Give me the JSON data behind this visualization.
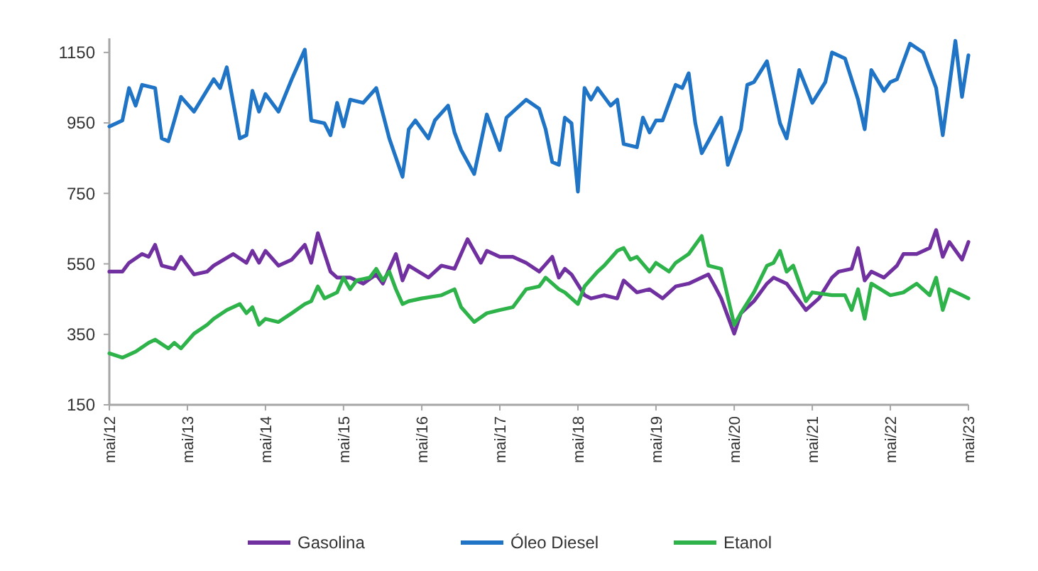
{
  "chart_data": {
    "type": "line",
    "ylim": [
      150,
      1190
    ],
    "yticks": [
      150,
      350,
      550,
      750,
      950,
      1150
    ],
    "xlim": [
      "2012-05",
      "2023-05"
    ],
    "xticks": [
      {
        "value": "2012-05",
        "label": "mai/12"
      },
      {
        "value": "2013-05",
        "label": "mai/13"
      },
      {
        "value": "2014-05",
        "label": "mai/14"
      },
      {
        "value": "2015-05",
        "label": "mai/15"
      },
      {
        "value": "2016-05",
        "label": "mai/16"
      },
      {
        "value": "2017-05",
        "label": "mai/17"
      },
      {
        "value": "2018-05",
        "label": "mai/18"
      },
      {
        "value": "2019-05",
        "label": "mai/19"
      },
      {
        "value": "2020-05",
        "label": "mai/20"
      },
      {
        "value": "2021-05",
        "label": "mai/21"
      },
      {
        "value": "2022-05",
        "label": "mai/22"
      },
      {
        "value": "2023-05",
        "label": "mai/23"
      }
    ],
    "grid": false,
    "legend": "bottom",
    "line_style": "solid",
    "series": [
      {
        "name": "Gasolina",
        "color": "#7030a0",
        "x": [
          "2012-05",
          "2012-07",
          "2012-08",
          "2012-10",
          "2012-11",
          "2012-12",
          "2013-01",
          "2013-03",
          "2013-04",
          "2013-06",
          "2013-08",
          "2013-09",
          "2013-12",
          "2014-02",
          "2014-03",
          "2014-04",
          "2014-05",
          "2014-07",
          "2014-09",
          "2014-11",
          "2014-12",
          "2015-01",
          "2015-03",
          "2015-04",
          "2015-06",
          "2015-08",
          "2015-10",
          "2015-11",
          "2016-01",
          "2016-02",
          "2016-03",
          "2016-06",
          "2016-08",
          "2016-10",
          "2016-12",
          "2017-02",
          "2017-03",
          "2017-05",
          "2017-07",
          "2017-09",
          "2017-11",
          "2018-01",
          "2018-02",
          "2018-03",
          "2018-04",
          "2018-06",
          "2018-07",
          "2018-09",
          "2018-11",
          "2018-12",
          "2019-02",
          "2019-04",
          "2019-06",
          "2019-08",
          "2019-10",
          "2020-01",
          "2020-02",
          "2020-03",
          "2020-05",
          "2020-06",
          "2020-08",
          "2020-10",
          "2020-11",
          "2021-01",
          "2021-04",
          "2021-06",
          "2021-08",
          "2021-09",
          "2021-11",
          "2021-12",
          "2022-01",
          "2022-02",
          "2022-04",
          "2022-06",
          "2022-07",
          "2022-09",
          "2022-11",
          "2022-12",
          "2023-01",
          "2023-02",
          "2023-04",
          "2023-05"
        ],
        "values": [
          528,
          528,
          553,
          578,
          570,
          604,
          545,
          536,
          570,
          520,
          528,
          545,
          578,
          553,
          587,
          553,
          587,
          545,
          562,
          604,
          553,
          637,
          528,
          511,
          511,
          494,
          520,
          494,
          578,
          503,
          545,
          511,
          545,
          536,
          620,
          553,
          587,
          570,
          570,
          553,
          528,
          570,
          511,
          536,
          520,
          461,
          452,
          461,
          452,
          503,
          469,
          478,
          452,
          486,
          494,
          520,
          486,
          452,
          352,
          410,
          444,
          494,
          511,
          494,
          419,
          452,
          511,
          528,
          536,
          595,
          503,
          528,
          511,
          545,
          578,
          578,
          595,
          646,
          570,
          612,
          562,
          612
        ]
      },
      {
        "name": "Óleo Diesel",
        "color": "#1f74c6",
        "x": [
          "2012-05",
          "2012-07",
          "2012-08",
          "2012-09",
          "2012-10",
          "2012-12",
          "2013-01",
          "2013-02",
          "2013-03",
          "2013-04",
          "2013-06",
          "2013-09",
          "2013-10",
          "2013-11",
          "2014-01",
          "2014-02",
          "2014-03",
          "2014-04",
          "2014-05",
          "2014-07",
          "2014-09",
          "2014-11",
          "2014-12",
          "2015-02",
          "2015-03",
          "2015-04",
          "2015-05",
          "2015-06",
          "2015-08",
          "2015-10",
          "2015-12",
          "2016-02",
          "2016-03",
          "2016-04",
          "2016-06",
          "2016-07",
          "2016-09",
          "2016-10",
          "2016-11",
          "2017-01",
          "2017-03",
          "2017-05",
          "2017-06",
          "2017-09",
          "2017-11",
          "2017-12",
          "2018-01",
          "2018-02",
          "2018-03",
          "2018-04",
          "2018-05",
          "2018-06",
          "2018-07",
          "2018-08",
          "2018-10",
          "2018-11",
          "2018-12",
          "2019-02",
          "2019-03",
          "2019-04",
          "2019-05",
          "2019-06",
          "2019-08",
          "2019-09",
          "2019-10",
          "2019-11",
          "2019-12",
          "2020-01",
          "2020-03",
          "2020-04",
          "2020-06",
          "2020-07",
          "2020-08",
          "2020-10",
          "2020-12",
          "2021-01",
          "2021-03",
          "2021-05",
          "2021-07",
          "2021-08",
          "2021-10",
          "2021-12",
          "2022-01",
          "2022-02",
          "2022-04",
          "2022-05",
          "2022-06",
          "2022-08",
          "2022-10",
          "2022-12",
          "2023-01",
          "2023-03",
          "2023-04",
          "2023-05"
        ],
        "values": [
          940,
          957,
          1049,
          999,
          1058,
          1049,
          906,
          898,
          957,
          1024,
          982,
          1074,
          1049,
          1108,
          906,
          915,
          1041,
          982,
          1032,
          982,
          1074,
          1158,
          957,
          949,
          915,
          1007,
          940,
          1016,
          1007,
          1049,
          906,
          797,
          932,
          957,
          906,
          957,
          999,
          923,
          873,
          805,
          974,
          873,
          965,
          1016,
          990,
          932,
          839,
          831,
          965,
          949,
          755,
          1049,
          1016,
          1049,
          999,
          1016,
          890,
          881,
          965,
          923,
          957,
          957,
          1058,
          1049,
          1091,
          949,
          864,
          898,
          965,
          831,
          932,
          1058,
          1066,
          1125,
          949,
          906,
          1100,
          1007,
          1066,
          1150,
          1133,
          1016,
          932,
          1100,
          1041,
          1066,
          1074,
          1175,
          1150,
          1049,
          915,
          1183,
          1024,
          1142
        ]
      },
      {
        "name": "Etanol",
        "color": "#2eb24a",
        "x": [
          "2012-05",
          "2012-07",
          "2012-09",
          "2012-11",
          "2012-12",
          "2013-02",
          "2013-03",
          "2013-04",
          "2013-06",
          "2013-08",
          "2013-09",
          "2013-11",
          "2014-01",
          "2014-02",
          "2014-03",
          "2014-04",
          "2014-05",
          "2014-07",
          "2014-09",
          "2014-11",
          "2014-12",
          "2015-01",
          "2015-02",
          "2015-04",
          "2015-05",
          "2015-06",
          "2015-07",
          "2015-09",
          "2015-10",
          "2015-11",
          "2015-12",
          "2016-01",
          "2016-02",
          "2016-03",
          "2016-05",
          "2016-08",
          "2016-10",
          "2016-11",
          "2017-01",
          "2017-03",
          "2017-05",
          "2017-07",
          "2017-09",
          "2017-11",
          "2017-12",
          "2018-02",
          "2018-03",
          "2018-05",
          "2018-06",
          "2018-08",
          "2018-09",
          "2018-11",
          "2018-12",
          "2019-01",
          "2019-02",
          "2019-04",
          "2019-05",
          "2019-07",
          "2019-08",
          "2019-10",
          "2019-11",
          "2019-12",
          "2020-01",
          "2020-03",
          "2020-05",
          "2020-06",
          "2020-08",
          "2020-10",
          "2020-11",
          "2020-12",
          "2021-01",
          "2021-02",
          "2021-04",
          "2021-05",
          "2021-08",
          "2021-10",
          "2021-11",
          "2021-12",
          "2022-01",
          "2022-02",
          "2022-05",
          "2022-07",
          "2022-09",
          "2022-11",
          "2022-12",
          "2023-01",
          "2023-02",
          "2023-04",
          "2023-05"
        ],
        "values": [
          296,
          284,
          301,
          326,
          335,
          310,
          326,
          310,
          352,
          377,
          394,
          419,
          436,
          410,
          427,
          377,
          394,
          385,
          410,
          436,
          444,
          486,
          452,
          469,
          511,
          478,
          503,
          511,
          536,
          503,
          528,
          478,
          436,
          444,
          452,
          461,
          478,
          427,
          385,
          410,
          419,
          427,
          478,
          486,
          511,
          478,
          469,
          436,
          486,
          528,
          545,
          587,
          595,
          562,
          570,
          528,
          553,
          528,
          553,
          578,
          604,
          629,
          545,
          536,
          377,
          410,
          469,
          545,
          553,
          587,
          528,
          545,
          444,
          469,
          461,
          461,
          419,
          478,
          394,
          494,
          461,
          469,
          494,
          461,
          511,
          419,
          478,
          461,
          452
        ]
      }
    ]
  }
}
